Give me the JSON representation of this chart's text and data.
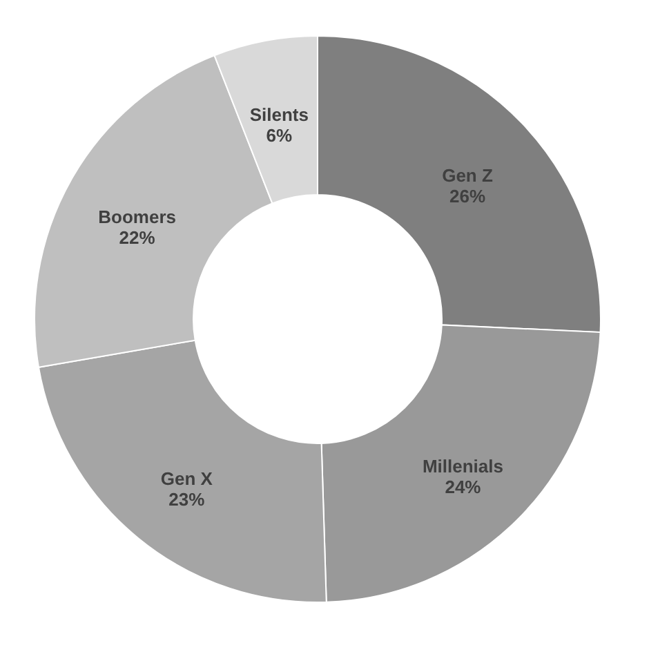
{
  "chart_data": {
    "type": "donut",
    "categories": [
      "Gen Z",
      "Millenials",
      "Gen X",
      "Boomers",
      "Silents"
    ],
    "values": [
      26,
      24,
      23,
      22,
      6
    ],
    "value_labels": [
      "26%",
      "24%",
      "23%",
      "22%",
      "6%"
    ],
    "colors": [
      "#7f7f7f",
      "#999999",
      "#a5a5a5",
      "#bfbfbf",
      "#d9d9d9"
    ],
    "legend": false
  }
}
